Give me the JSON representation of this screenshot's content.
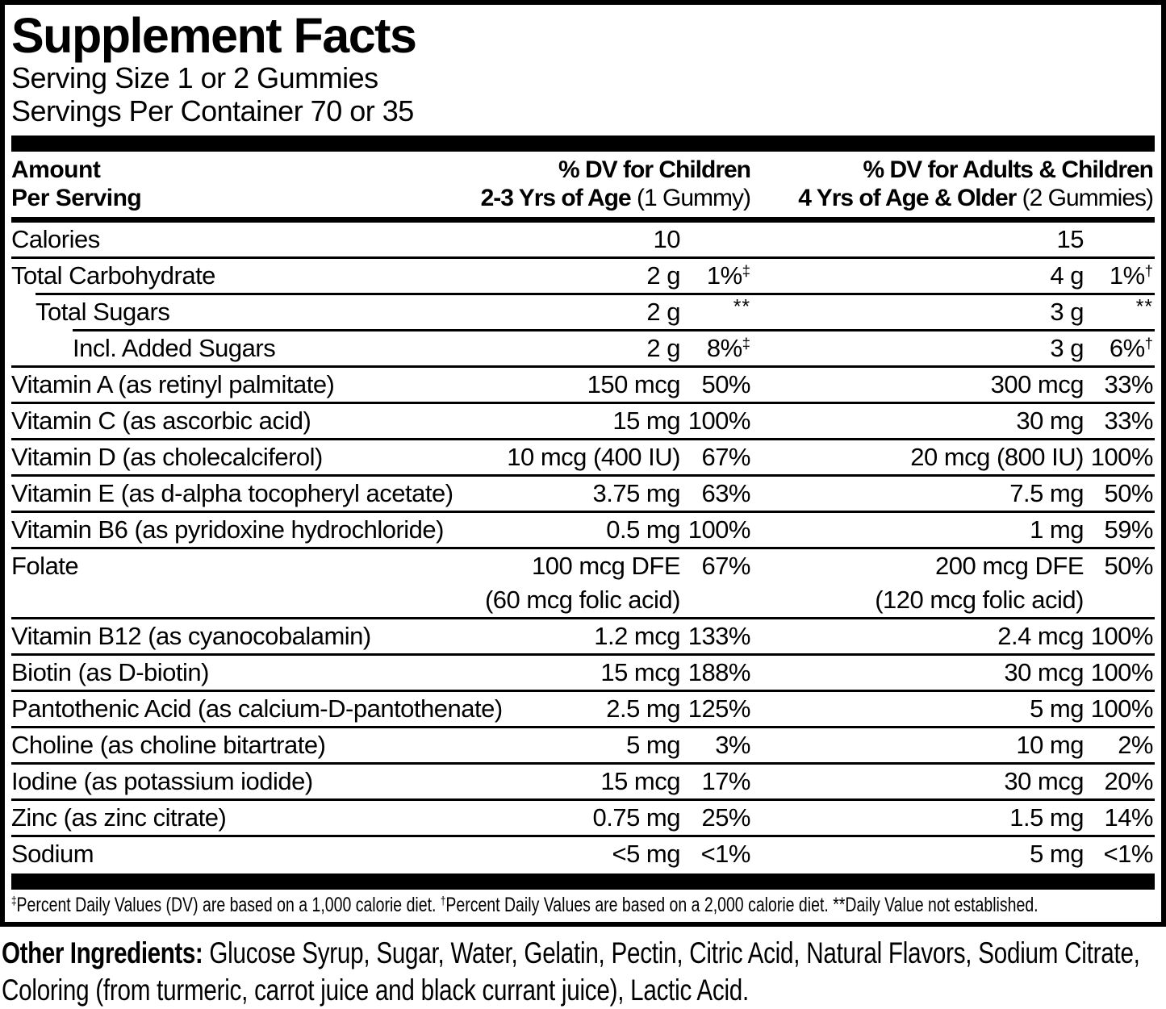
{
  "title": "Supplement Facts",
  "serving": {
    "size": "Serving Size 1 or 2 Gummies",
    "per_container": "Servings Per Container 70 or 35"
  },
  "table": {
    "header": {
      "amount": "Amount",
      "per_serving": "Per Serving",
      "child_line1": "% DV for Children",
      "child_line2_bold": "2-3 Yrs of Age",
      "child_line2_normal": " (1 Gummy)",
      "adult_line1": "% DV for Adults & Children",
      "adult_line2_bold": "4 Yrs of Age & Older",
      "adult_line2_normal": " (2 Gummies)"
    },
    "rows": [
      {
        "name": "Calories",
        "indent": 0,
        "child": {
          "amount": "10",
          "dv": "",
          "dv_sup": ""
        },
        "adult": {
          "amount": "15",
          "dv": "",
          "dv_sup": ""
        }
      },
      {
        "name": "Total Carbohydrate",
        "indent": 0,
        "child": {
          "amount": "2 g",
          "dv": "1%",
          "dv_sup": "‡"
        },
        "adult": {
          "amount": "4 g",
          "dv": "1%",
          "dv_sup": "†"
        }
      },
      {
        "name": "Total Sugars",
        "indent": 1,
        "child": {
          "amount": "2 g",
          "dv": "",
          "dv_sup": "**"
        },
        "adult": {
          "amount": "3 g",
          "dv": "",
          "dv_sup": "**"
        }
      },
      {
        "name": "Incl. Added Sugars",
        "indent": 2,
        "child": {
          "amount": "2 g",
          "dv": "8%",
          "dv_sup": "‡"
        },
        "adult": {
          "amount": "3 g",
          "dv": "6%",
          "dv_sup": "†"
        }
      },
      {
        "name": "Vitamin A (as retinyl palmitate)",
        "indent": 0,
        "child": {
          "amount": "150 mcg",
          "dv": "50%",
          "dv_sup": ""
        },
        "adult": {
          "amount": "300 mcg",
          "dv": "33%",
          "dv_sup": ""
        }
      },
      {
        "name": "Vitamin C (as ascorbic acid)",
        "indent": 0,
        "child": {
          "amount": "15 mg",
          "dv": "100%",
          "dv_sup": ""
        },
        "adult": {
          "amount": "30 mg",
          "dv": "33%",
          "dv_sup": ""
        }
      },
      {
        "name": "Vitamin D (as cholecalciferol)",
        "indent": 0,
        "child": {
          "amount": "10 mcg (400 IU)",
          "dv": "67%",
          "dv_sup": ""
        },
        "adult": {
          "amount": "20 mcg (800 IU)",
          "dv": "100%",
          "dv_sup": ""
        }
      },
      {
        "name": "Vitamin E (as d-alpha tocopheryl acetate)",
        "indent": 0,
        "child": {
          "amount": "3.75 mg",
          "dv": "63%",
          "dv_sup": ""
        },
        "adult": {
          "amount": "7.5 mg",
          "dv": "50%",
          "dv_sup": ""
        }
      },
      {
        "name": "Vitamin B6 (as pyridoxine hydrochloride)",
        "indent": 0,
        "child": {
          "amount": "0.5 mg",
          "dv": "100%",
          "dv_sup": ""
        },
        "adult": {
          "amount": "1 mg",
          "dv": "59%",
          "dv_sup": ""
        }
      },
      {
        "name": "Folate",
        "indent": 0,
        "child": {
          "amount": "100 mcg DFE",
          "amount2": "(60 mcg folic acid)",
          "dv": "67%",
          "dv_sup": ""
        },
        "adult": {
          "amount": "200 mcg DFE",
          "amount2": "(120 mcg folic acid)",
          "dv": "50%",
          "dv_sup": ""
        }
      },
      {
        "name": "Vitamin B12 (as cyanocobalamin)",
        "indent": 0,
        "child": {
          "amount": "1.2 mcg",
          "dv": "133%",
          "dv_sup": ""
        },
        "adult": {
          "amount": "2.4 mcg",
          "dv": "100%",
          "dv_sup": ""
        }
      },
      {
        "name": "Biotin (as D-biotin)",
        "indent": 0,
        "child": {
          "amount": "15 mcg",
          "dv": "188%",
          "dv_sup": ""
        },
        "adult": {
          "amount": "30 mcg",
          "dv": "100%",
          "dv_sup": ""
        }
      },
      {
        "name": "Pantothenic Acid (as calcium-D-pantothenate)",
        "indent": 0,
        "child": {
          "amount": "2.5 mg",
          "dv": "125%",
          "dv_sup": ""
        },
        "adult": {
          "amount": "5 mg",
          "dv": "100%",
          "dv_sup": ""
        }
      },
      {
        "name": "Choline (as choline bitartrate)",
        "indent": 0,
        "child": {
          "amount": "5 mg",
          "dv": "3%",
          "dv_sup": ""
        },
        "adult": {
          "amount": "10 mg",
          "dv": "2%",
          "dv_sup": ""
        }
      },
      {
        "name": "Iodine (as potassium iodide)",
        "indent": 0,
        "child": {
          "amount": "15 mcg",
          "dv": "17%",
          "dv_sup": ""
        },
        "adult": {
          "amount": "30 mcg",
          "dv": "20%",
          "dv_sup": ""
        }
      },
      {
        "name": "Zinc (as zinc citrate)",
        "indent": 0,
        "child": {
          "amount": "0.75 mg",
          "dv": "25%",
          "dv_sup": ""
        },
        "adult": {
          "amount": "1.5 mg",
          "dv": "14%",
          "dv_sup": ""
        }
      },
      {
        "name": "Sodium",
        "indent": 0,
        "child": {
          "amount": "<5 mg",
          "dv": "<1%",
          "dv_sup": ""
        },
        "adult": {
          "amount": "5 mg",
          "dv": "<1%",
          "dv_sup": ""
        }
      }
    ]
  },
  "footnote": {
    "parts": [
      {
        "sup": "‡",
        "text": "Percent Daily Values (DV) are based on a 1,000 calorie diet. "
      },
      {
        "sup": "†",
        "text": "Percent Daily Values are based on a 2,000 calorie diet.  "
      },
      {
        "sup": "",
        "text": "**Daily Value not established."
      }
    ]
  },
  "other_ingredients": {
    "label": "Other Ingredients:",
    "text": " Glucose Syrup, Sugar, Water, Gelatin, Pectin, Citric Acid, Natural Flavors, Sodium Citrate, Coloring (from turmeric, carrot juice and black currant juice), Lactic Acid."
  },
  "colors": {
    "ink": "#000000",
    "background": "#ffffff"
  }
}
